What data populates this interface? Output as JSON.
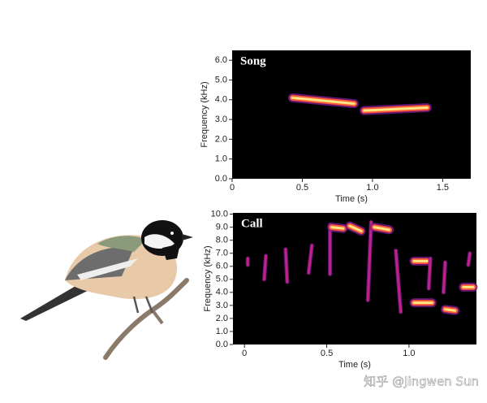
{
  "chart_data": [
    {
      "type": "spectrogram",
      "title": "Song",
      "x_label": "Time (s)",
      "y_label": "Frequency (kHz)",
      "xlim": [
        0,
        1.7
      ],
      "ylim": [
        0,
        6.5
      ],
      "xticks": [
        0,
        0.5,
        {
          "value": 1,
          "label": "1.0"
        },
        1.5
      ],
      "yticks": [
        {
          "value": 0,
          "label": "0.0"
        },
        {
          "value": 1,
          "label": "1.0"
        },
        {
          "value": 2,
          "label": "2.0"
        },
        {
          "value": 3,
          "label": "3.0"
        },
        {
          "value": 4,
          "label": "4.0"
        },
        {
          "value": 5,
          "label": "5.0"
        },
        {
          "value": 6,
          "label": "6.0"
        }
      ],
      "syllables": [
        {
          "t0": 0.43,
          "t1": 0.87,
          "f0": 4.1,
          "f1": 3.8
        },
        {
          "t0": 0.94,
          "t1": 1.39,
          "f0": 3.45,
          "f1": 3.6
        }
      ]
    },
    {
      "type": "spectrogram",
      "title": "Call",
      "x_label": "Time (s)",
      "y_label": "Frequency (kHz)",
      "xlim": [
        -0.07,
        1.41
      ],
      "ylim": [
        0,
        10.1
      ],
      "xticks": [
        0,
        0.5,
        {
          "value": 1,
          "label": "1.0"
        }
      ],
      "yticks": [
        {
          "value": 0,
          "label": "0.0"
        },
        {
          "value": 1,
          "label": "1.0"
        },
        {
          "value": 2,
          "label": "2.0"
        },
        {
          "value": 3,
          "label": "3.0"
        },
        {
          "value": 4,
          "label": "4.0"
        },
        {
          "value": 5,
          "label": "5.0"
        },
        {
          "value": 6,
          "label": "6.0"
        },
        {
          "value": 7,
          "label": "7.0"
        },
        {
          "value": 8,
          "label": "8.0"
        },
        {
          "value": 9,
          "label": "9.0"
        },
        {
          "value": 10,
          "label": "10.0"
        }
      ],
      "syllables": [
        {
          "t0": 0.02,
          "t1": 0.02,
          "f0": 6.6,
          "f1": 6.1
        },
        {
          "t0": 0.13,
          "t1": 0.12,
          "f0": 6.8,
          "f1": 5.0
        },
        {
          "t0": 0.25,
          "t1": 0.26,
          "f0": 7.3,
          "f1": 4.8
        },
        {
          "t0": 0.41,
          "t1": 0.39,
          "f0": 7.6,
          "f1": 5.5
        },
        {
          "t0": 0.52,
          "t1": 0.52,
          "f0": 9.2,
          "f1": 5.4
        },
        {
          "t0": 0.53,
          "t1": 0.6,
          "f0": 9.0,
          "f1": 8.9
        },
        {
          "t0": 0.64,
          "t1": 0.71,
          "f0": 9.1,
          "f1": 8.7
        },
        {
          "t0": 0.77,
          "t1": 0.75,
          "f0": 9.4,
          "f1": 3.4
        },
        {
          "t0": 0.79,
          "t1": 0.88,
          "f0": 9.0,
          "f1": 8.8
        },
        {
          "t0": 0.92,
          "t1": 0.95,
          "f0": 7.2,
          "f1": 2.5
        },
        {
          "t0": 1.03,
          "t1": 1.14,
          "f0": 3.2,
          "f1": 3.2
        },
        {
          "t0": 1.03,
          "t1": 1.11,
          "f0": 6.4,
          "f1": 6.4
        },
        {
          "t0": 1.13,
          "t1": 1.12,
          "f0": 6.6,
          "f1": 4.3
        },
        {
          "t0": 1.22,
          "t1": 1.21,
          "f0": 6.3,
          "f1": 4.0
        },
        {
          "t0": 1.22,
          "t1": 1.28,
          "f0": 2.7,
          "f1": 2.6
        },
        {
          "t0": 1.33,
          "t1": 1.39,
          "f0": 4.4,
          "f1": 4.4
        },
        {
          "t0": 1.37,
          "t1": 1.36,
          "f0": 7.0,
          "f1": 6.1
        }
      ]
    }
  ],
  "watermark": "知乎 @Jingwen Sun"
}
